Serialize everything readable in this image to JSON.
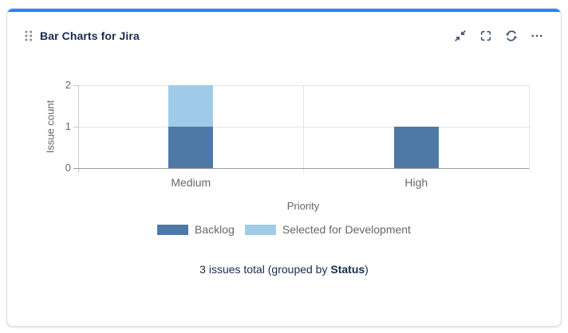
{
  "gadget": {
    "title": "Bar Charts for Jira",
    "accent_color": "#2684FF",
    "drag_handle_icon": "drag-handle-icon",
    "toolbar_icons": [
      "collapse-icon",
      "fullscreen-icon",
      "refresh-icon",
      "more-icon"
    ]
  },
  "chart_data": {
    "type": "bar",
    "stacked": true,
    "categories": [
      "Medium",
      "High"
    ],
    "series": [
      {
        "name": "Backlog",
        "color": "#4e79a7",
        "values": [
          1,
          1
        ]
      },
      {
        "name": "Selected for Development",
        "color": "#a0cbe8",
        "values": [
          1,
          0
        ]
      }
    ],
    "title": "",
    "xlabel": "Priority",
    "ylabel": "Issue count",
    "ylim": [
      0,
      2
    ],
    "yticks": [
      0,
      1,
      2
    ],
    "grid": true,
    "legend_position": "bottom"
  },
  "summary": {
    "prefix": "3 issues total (grouped by ",
    "group_by": "Status",
    "suffix": ")"
  }
}
